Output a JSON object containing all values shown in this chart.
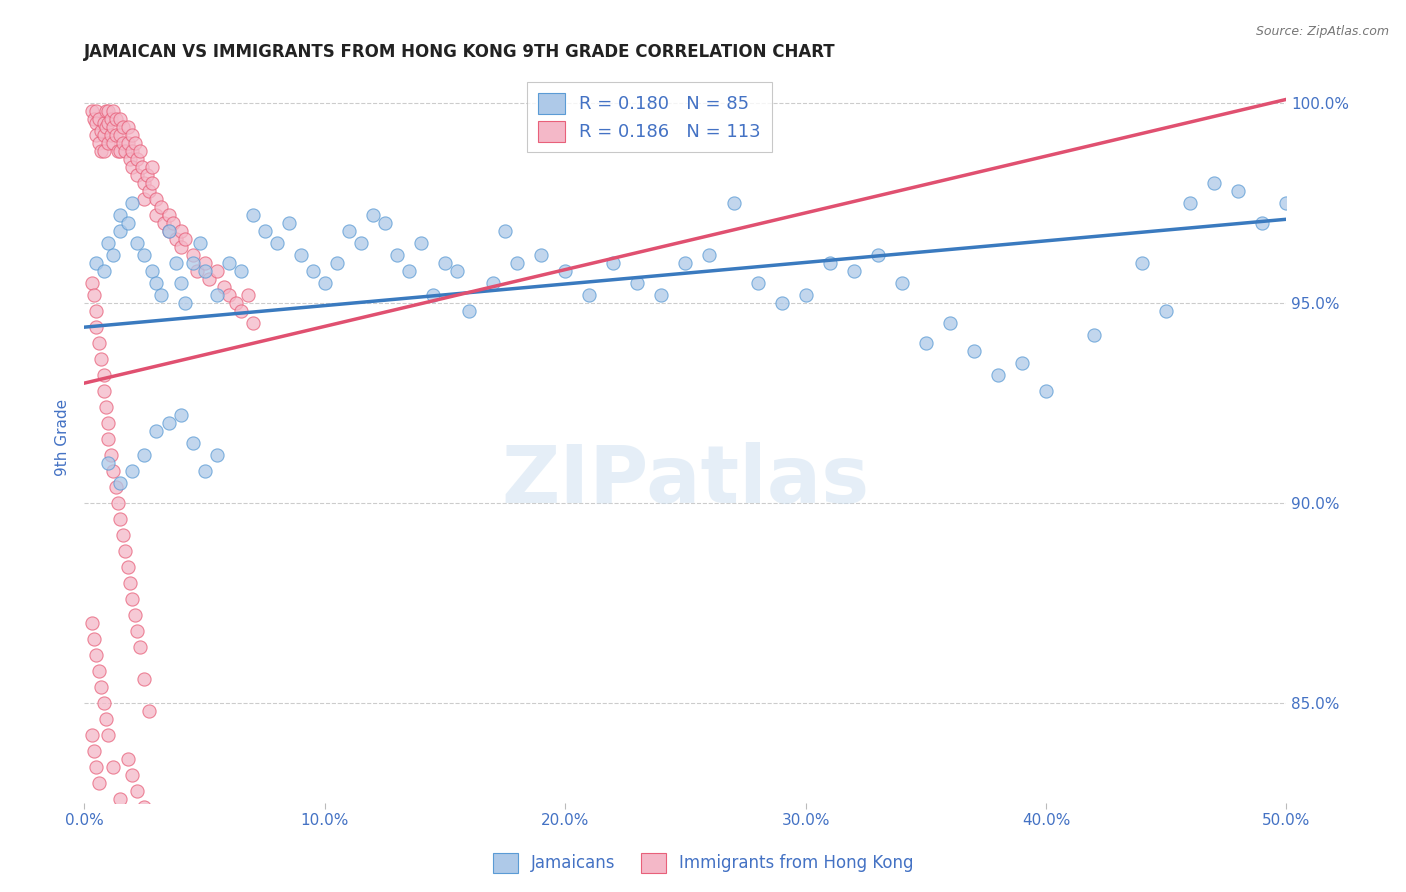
{
  "title": "JAMAICAN VS IMMIGRANTS FROM HONG KONG 9TH GRADE CORRELATION CHART",
  "source": "Source: ZipAtlas.com",
  "ylabel": "9th Grade",
  "xlim": [
    0.0,
    0.5
  ],
  "ylim": [
    0.825,
    1.008
  ],
  "blue_R": 0.18,
  "blue_N": 85,
  "pink_R": 0.186,
  "pink_N": 113,
  "blue_color": "#aec9e8",
  "pink_color": "#f4b8c8",
  "blue_edge_color": "#5b9bd5",
  "pink_edge_color": "#e8607a",
  "blue_line_color": "#3a7abf",
  "pink_line_color": "#e05070",
  "scatter_blue_label": "Jamaicans",
  "scatter_pink_label": "Immigrants from Hong Kong",
  "watermark": "ZIPatlas",
  "title_color": "#222222",
  "axis_label_color": "#4472c4",
  "tick_label_color": "#4472c4",
  "grid_color": "#cccccc",
  "background_color": "#ffffff",
  "right_yticks": [
    0.85,
    0.9,
    0.95,
    1.0
  ],
  "right_ytick_labels": [
    "85.0%",
    "90.0%",
    "95.0%",
    "100.0%"
  ],
  "xticks": [
    0.0,
    0.1,
    0.2,
    0.3,
    0.4,
    0.5
  ],
  "xtick_labels": [
    "0.0%",
    "10.0%",
    "20.0%",
    "30.0%",
    "40.0%",
    "50.0%"
  ],
  "blue_trend_x0": 0.0,
  "blue_trend_y0": 0.944,
  "blue_trend_x1": 0.5,
  "blue_trend_y1": 0.971,
  "pink_trend_x0": 0.0,
  "pink_trend_y0": 0.93,
  "pink_trend_x1": 0.5,
  "pink_trend_y1": 1.001,
  "blue_scatter_x": [
    0.005,
    0.008,
    0.01,
    0.012,
    0.015,
    0.015,
    0.018,
    0.02,
    0.022,
    0.025,
    0.028,
    0.03,
    0.032,
    0.035,
    0.038,
    0.04,
    0.042,
    0.045,
    0.048,
    0.05,
    0.055,
    0.06,
    0.065,
    0.07,
    0.075,
    0.08,
    0.085,
    0.09,
    0.095,
    0.1,
    0.105,
    0.11,
    0.115,
    0.12,
    0.125,
    0.13,
    0.135,
    0.14,
    0.145,
    0.15,
    0.155,
    0.16,
    0.17,
    0.175,
    0.18,
    0.19,
    0.2,
    0.21,
    0.22,
    0.23,
    0.24,
    0.25,
    0.26,
    0.27,
    0.28,
    0.29,
    0.3,
    0.31,
    0.32,
    0.33,
    0.34,
    0.35,
    0.36,
    0.37,
    0.38,
    0.39,
    0.4,
    0.42,
    0.44,
    0.45,
    0.46,
    0.47,
    0.48,
    0.49,
    0.5,
    0.01,
    0.015,
    0.02,
    0.025,
    0.03,
    0.035,
    0.04,
    0.045,
    0.05,
    0.055
  ],
  "blue_scatter_y": [
    0.96,
    0.958,
    0.965,
    0.962,
    0.968,
    0.972,
    0.97,
    0.975,
    0.965,
    0.962,
    0.958,
    0.955,
    0.952,
    0.968,
    0.96,
    0.955,
    0.95,
    0.96,
    0.965,
    0.958,
    0.952,
    0.96,
    0.958,
    0.972,
    0.968,
    0.965,
    0.97,
    0.962,
    0.958,
    0.955,
    0.96,
    0.968,
    0.965,
    0.972,
    0.97,
    0.962,
    0.958,
    0.965,
    0.952,
    0.96,
    0.958,
    0.948,
    0.955,
    0.968,
    0.96,
    0.962,
    0.958,
    0.952,
    0.96,
    0.955,
    0.952,
    0.96,
    0.962,
    0.975,
    0.955,
    0.95,
    0.952,
    0.96,
    0.958,
    0.962,
    0.955,
    0.94,
    0.945,
    0.938,
    0.932,
    0.935,
    0.928,
    0.942,
    0.96,
    0.948,
    0.975,
    0.98,
    0.978,
    0.97,
    0.975,
    0.91,
    0.905,
    0.908,
    0.912,
    0.918,
    0.92,
    0.922,
    0.915,
    0.908,
    0.912
  ],
  "pink_scatter_x": [
    0.003,
    0.004,
    0.005,
    0.005,
    0.005,
    0.006,
    0.006,
    0.007,
    0.007,
    0.008,
    0.008,
    0.008,
    0.009,
    0.009,
    0.01,
    0.01,
    0.01,
    0.011,
    0.011,
    0.012,
    0.012,
    0.012,
    0.013,
    0.013,
    0.014,
    0.015,
    0.015,
    0.015,
    0.016,
    0.016,
    0.017,
    0.018,
    0.018,
    0.019,
    0.02,
    0.02,
    0.02,
    0.021,
    0.022,
    0.022,
    0.023,
    0.024,
    0.025,
    0.025,
    0.026,
    0.027,
    0.028,
    0.028,
    0.03,
    0.03,
    0.032,
    0.033,
    0.035,
    0.035,
    0.037,
    0.038,
    0.04,
    0.04,
    0.042,
    0.045,
    0.047,
    0.05,
    0.052,
    0.055,
    0.058,
    0.06,
    0.063,
    0.065,
    0.068,
    0.07,
    0.003,
    0.004,
    0.005,
    0.005,
    0.006,
    0.007,
    0.008,
    0.008,
    0.009,
    0.01,
    0.01,
    0.011,
    0.012,
    0.013,
    0.014,
    0.015,
    0.016,
    0.017,
    0.018,
    0.019,
    0.02,
    0.021,
    0.022,
    0.023,
    0.025,
    0.027,
    0.003,
    0.004,
    0.005,
    0.006,
    0.007,
    0.008,
    0.009,
    0.01,
    0.012,
    0.015,
    0.018,
    0.02,
    0.022,
    0.025,
    0.003,
    0.004,
    0.005,
    0.006
  ],
  "pink_scatter_y": [
    0.998,
    0.996,
    0.998,
    0.995,
    0.992,
    0.99,
    0.996,
    0.993,
    0.988,
    0.995,
    0.992,
    0.988,
    0.998,
    0.994,
    0.998,
    0.995,
    0.99,
    0.996,
    0.992,
    0.998,
    0.994,
    0.99,
    0.996,
    0.992,
    0.988,
    0.996,
    0.992,
    0.988,
    0.994,
    0.99,
    0.988,
    0.994,
    0.99,
    0.986,
    0.992,
    0.988,
    0.984,
    0.99,
    0.986,
    0.982,
    0.988,
    0.984,
    0.98,
    0.976,
    0.982,
    0.978,
    0.984,
    0.98,
    0.976,
    0.972,
    0.974,
    0.97,
    0.972,
    0.968,
    0.97,
    0.966,
    0.968,
    0.964,
    0.966,
    0.962,
    0.958,
    0.96,
    0.956,
    0.958,
    0.954,
    0.952,
    0.95,
    0.948,
    0.952,
    0.945,
    0.955,
    0.952,
    0.948,
    0.944,
    0.94,
    0.936,
    0.932,
    0.928,
    0.924,
    0.92,
    0.916,
    0.912,
    0.908,
    0.904,
    0.9,
    0.896,
    0.892,
    0.888,
    0.884,
    0.88,
    0.876,
    0.872,
    0.868,
    0.864,
    0.856,
    0.848,
    0.87,
    0.866,
    0.862,
    0.858,
    0.854,
    0.85,
    0.846,
    0.842,
    0.834,
    0.826,
    0.836,
    0.832,
    0.828,
    0.824,
    0.842,
    0.838,
    0.834,
    0.83
  ]
}
